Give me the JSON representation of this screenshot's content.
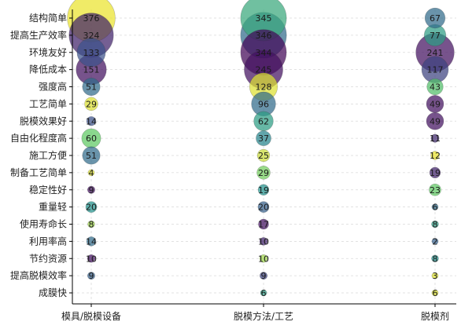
{
  "chart_data": {
    "type": "scatter",
    "title": "",
    "xlabel": "",
    "ylabel": "",
    "grid": true,
    "categories": [
      "模具/脱模设备",
      "脱模方法/工艺",
      "脱模剂"
    ],
    "features": [
      "成膜快",
      "提高脱模效率",
      "节约资源",
      "利用率高",
      "使用寿命长",
      "重量轻",
      "稳定性好",
      "制备工艺简单",
      "施工方便",
      "自由化程度高",
      "脱模效果好",
      "工艺简单",
      "强度高",
      "降低成本",
      "环境友好",
      "提高生产效率",
      "结构简单"
    ],
    "series": [
      {
        "values": [
          null,
          9,
          10,
          14,
          8,
          20,
          9,
          4,
          51,
          60,
          14,
          29,
          51,
          151,
          133,
          324,
          376
        ]
      },
      {
        "values": [
          6,
          9,
          10,
          10,
          17,
          20,
          19,
          29,
          25,
          37,
          62,
          96,
          128,
          245,
          344,
          346,
          345
        ]
      },
      {
        "values": [
          6,
          3,
          8,
          2,
          8,
          6,
          23,
          19,
          12,
          11,
          49,
          49,
          43,
          117,
          241,
          77,
          67
        ]
      }
    ],
    "colors": {
      "low": "#440154",
      "mid_low": "#3b528b",
      "mid": "#21918c",
      "mid_high": "#5ec962",
      "high": "#fde725"
    }
  }
}
